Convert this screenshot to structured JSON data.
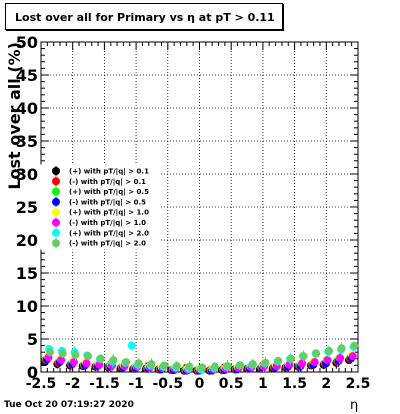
{
  "title": "Lost over all for Primary vs   η at pT > 0.11",
  "footer": {
    "datetime": "Tue Oct 20 07:19:27 2020",
    "x_symbol": "η"
  },
  "chart_data": {
    "type": "scatter",
    "title": "Lost over all for Primary vs   η at pT > 0.11",
    "xlabel": "η",
    "ylabel": "Lost over all (%)",
    "xlim": [
      -2.5,
      2.5
    ],
    "ylim": [
      0,
      50
    ],
    "x_ticks": [
      "-2.5",
      "-2",
      "-1.5",
      "-1",
      "-0.5",
      "0",
      "0.5",
      "1",
      "1.5",
      "2",
      "2.5"
    ],
    "y_ticks": [
      "0",
      "5",
      "10",
      "15",
      "20",
      "25",
      "30",
      "35",
      "40",
      "45",
      "50"
    ],
    "grid": true,
    "legend_position": "left-middle",
    "series": [
      {
        "name": "(+) with pT/|q| > 0.1",
        "color": "#000000",
        "x": [
          -2.4,
          -2.2,
          -2.0,
          -1.8,
          -1.6,
          -1.4,
          -1.2,
          -1.0,
          -0.8,
          -0.6,
          -0.4,
          -0.2,
          0.0,
          0.2,
          0.4,
          0.6,
          0.8,
          1.0,
          1.2,
          1.4,
          1.6,
          1.8,
          2.0,
          2.2,
          2.4
        ],
        "y": [
          1.5,
          1.2,
          1.0,
          0.9,
          0.8,
          0.7,
          0.6,
          0.5,
          0.5,
          0.4,
          0.3,
          0.2,
          0.2,
          0.2,
          0.3,
          0.4,
          0.5,
          0.5,
          0.6,
          0.7,
          0.8,
          1.0,
          1.1,
          1.4,
          1.8
        ]
      },
      {
        "name": "(-) with pT/|q| > 0.1",
        "color": "#ff0000",
        "x": [
          -2.4,
          -2.2,
          -2.0,
          -1.8,
          -1.6,
          -1.4,
          -1.2,
          -1.0,
          -0.8,
          -0.6,
          -0.4,
          -0.2,
          0.0,
          0.2,
          0.4,
          0.6,
          0.8,
          1.0,
          1.2,
          1.4,
          1.6,
          1.8,
          2.0,
          2.2,
          2.4
        ],
        "y": [
          1.8,
          1.4,
          1.2,
          1.0,
          0.9,
          0.8,
          0.7,
          0.6,
          0.5,
          0.4,
          0.3,
          0.3,
          0.2,
          0.3,
          0.3,
          0.4,
          0.5,
          0.6,
          0.7,
          0.8,
          0.9,
          1.1,
          1.3,
          1.6,
          2.0
        ]
      },
      {
        "name": "(+) with pT/|q| > 0.5",
        "color": "#00ff00",
        "x": [
          -2.4,
          -2.2,
          -2.0,
          -1.8,
          -1.6,
          -1.4,
          -1.2,
          -1.0,
          -0.8,
          -0.6,
          -0.4,
          -0.2,
          0.0,
          0.2,
          0.4,
          0.6,
          0.8,
          1.0,
          1.2,
          1.4,
          1.6,
          1.8,
          2.0,
          2.2,
          2.4
        ],
        "y": [
          2.0,
          1.6,
          1.3,
          1.1,
          1.0,
          0.9,
          0.8,
          0.7,
          0.6,
          0.5,
          0.4,
          0.3,
          0.3,
          0.3,
          0.4,
          0.5,
          0.6,
          0.7,
          0.8,
          0.9,
          1.0,
          1.2,
          1.4,
          1.8,
          2.2
        ]
      },
      {
        "name": "(-) with pT/|q| > 0.5",
        "color": "#0000ff",
        "x": [
          -2.4,
          -2.2,
          -2.0,
          -1.8,
          -1.6,
          -1.4,
          -1.2,
          -1.0,
          -0.8,
          -0.6,
          -0.4,
          -0.2,
          0.0,
          0.2,
          0.4,
          0.6,
          0.8,
          1.0,
          1.2,
          1.4,
          1.6,
          1.8,
          2.0,
          2.2,
          2.4
        ],
        "y": [
          1.9,
          1.5,
          1.2,
          1.0,
          0.9,
          0.8,
          0.7,
          0.6,
          0.5,
          0.4,
          0.3,
          0.2,
          0.2,
          0.2,
          0.3,
          0.4,
          0.5,
          0.6,
          0.7,
          0.8,
          0.9,
          1.1,
          1.3,
          1.7,
          2.1
        ]
      },
      {
        "name": "(+) with pT/|q| > 1.0",
        "color": "#ffff00",
        "x": [
          -2.4,
          -2.2,
          -2.0,
          -1.8,
          -1.6,
          -1.4,
          -1.2,
          -1.0,
          -0.8,
          -0.6,
          -0.4,
          -0.2,
          0.0,
          0.2,
          0.4,
          0.6,
          0.8,
          1.0,
          1.2,
          1.4,
          1.6,
          1.8,
          2.0,
          2.2,
          2.4
        ],
        "y": [
          2.4,
          2.0,
          1.7,
          1.5,
          1.3,
          1.1,
          1.0,
          0.9,
          0.8,
          0.7,
          0.6,
          0.5,
          0.4,
          0.5,
          0.6,
          0.7,
          0.8,
          0.9,
          1.0,
          1.2,
          1.4,
          1.6,
          1.9,
          2.2,
          2.6
        ]
      },
      {
        "name": "(-) with pT/|q| > 1.0",
        "color": "#ff00ff",
        "x": [
          -2.4,
          -2.2,
          -2.0,
          -1.8,
          -1.6,
          -1.4,
          -1.2,
          -1.0,
          -0.8,
          -0.6,
          -0.4,
          -0.2,
          0.0,
          0.2,
          0.4,
          0.6,
          0.8,
          1.0,
          1.2,
          1.4,
          1.6,
          1.8,
          2.0,
          2.2,
          2.4
        ],
        "y": [
          2.2,
          1.8,
          1.5,
          1.3,
          1.1,
          1.0,
          0.9,
          0.8,
          0.7,
          0.6,
          0.5,
          0.3,
          0.3,
          0.4,
          0.5,
          0.6,
          0.7,
          0.8,
          0.9,
          1.1,
          1.3,
          1.5,
          1.8,
          2.1,
          2.4
        ]
      },
      {
        "name": "(+) with pT/|q| > 2.0",
        "color": "#00ffff",
        "x": [
          -2.4,
          -2.2,
          -2.0,
          -1.8,
          -1.6,
          -1.4,
          -1.2,
          -1.1,
          -1.0,
          -0.8,
          -0.6,
          -0.4,
          -0.2,
          0.0,
          0.2,
          0.4,
          0.6,
          0.8,
          1.0,
          1.2,
          1.4,
          1.6,
          1.8,
          2.0,
          2.2,
          2.4
        ],
        "y": [
          3.5,
          3.2,
          3.0,
          2.5,
          2.0,
          1.6,
          1.4,
          4.0,
          1.1,
          1.0,
          0.8,
          0.7,
          0.5,
          0.4,
          0.6,
          0.8,
          1.0,
          1.1,
          1.3,
          1.6,
          2.0,
          2.4,
          2.8,
          3.1,
          3.4,
          3.8
        ]
      },
      {
        "name": "(-) with pT/|q| > 2.0",
        "color": "#66cc66",
        "x": [
          -2.4,
          -2.2,
          -2.0,
          -1.8,
          -1.6,
          -1.4,
          -1.2,
          -1.0,
          -0.8,
          -0.6,
          -0.4,
          -0.2,
          0.0,
          0.2,
          0.4,
          0.6,
          0.8,
          1.0,
          1.2,
          1.4,
          1.6,
          1.8,
          2.0,
          2.2,
          2.4
        ],
        "y": [
          3.0,
          2.8,
          2.6,
          2.4,
          2.0,
          1.8,
          1.5,
          1.3,
          1.2,
          1.0,
          0.9,
          0.8,
          0.7,
          0.8,
          0.9,
          1.0,
          1.2,
          1.4,
          1.7,
          2.0,
          2.4,
          2.8,
          3.2,
          3.6,
          4.0
        ]
      }
    ]
  }
}
